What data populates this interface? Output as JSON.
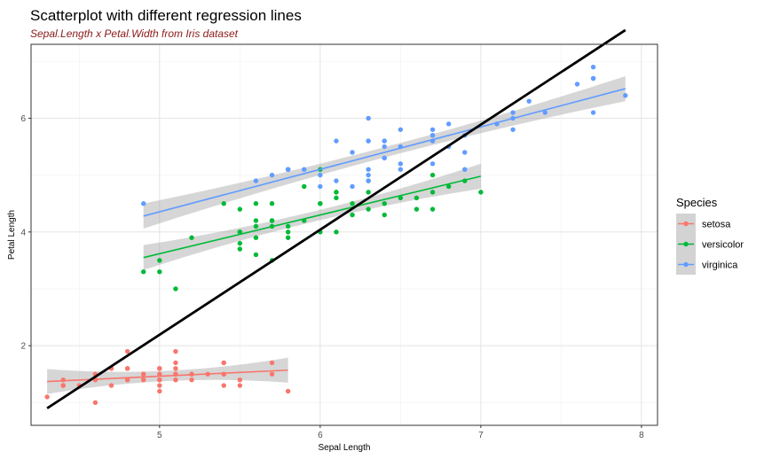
{
  "chart_data": {
    "type": "scatter",
    "title": "Scatterplot with different regression lines",
    "subtitle": "Sepal.Length x Petal.Width from Iris dataset",
    "xlabel": "Sepal Length",
    "ylabel": "Petal Length",
    "xlim": [
      4.2,
      8.1
    ],
    "ylim": [
      0.6,
      7.3
    ],
    "xticks": [
      5,
      6,
      7,
      8
    ],
    "yticks": [
      2,
      4,
      6
    ],
    "grid": true,
    "legend": {
      "title": "Species",
      "position": "right"
    },
    "series": [
      {
        "name": "setosa",
        "color": "#F8766D",
        "points": [
          [
            5.1,
            1.4
          ],
          [
            4.9,
            1.4
          ],
          [
            4.7,
            1.3
          ],
          [
            4.6,
            1.5
          ],
          [
            5.0,
            1.4
          ],
          [
            5.4,
            1.7
          ],
          [
            4.6,
            1.4
          ],
          [
            5.0,
            1.5
          ],
          [
            4.4,
            1.4
          ],
          [
            4.9,
            1.5
          ],
          [
            5.4,
            1.5
          ],
          [
            4.8,
            1.6
          ],
          [
            4.8,
            1.4
          ],
          [
            4.3,
            1.1
          ],
          [
            5.8,
            1.2
          ],
          [
            5.7,
            1.5
          ],
          [
            5.4,
            1.3
          ],
          [
            5.1,
            1.4
          ],
          [
            5.7,
            1.7
          ],
          [
            5.1,
            1.5
          ],
          [
            5.4,
            1.7
          ],
          [
            5.1,
            1.5
          ],
          [
            4.6,
            1.0
          ],
          [
            5.1,
            1.7
          ],
          [
            4.8,
            1.9
          ],
          [
            5.0,
            1.6
          ],
          [
            5.0,
            1.6
          ],
          [
            5.2,
            1.5
          ],
          [
            5.2,
            1.4
          ],
          [
            4.7,
            1.6
          ],
          [
            4.8,
            1.6
          ],
          [
            5.4,
            1.5
          ],
          [
            5.2,
            1.5
          ],
          [
            5.5,
            1.4
          ],
          [
            4.9,
            1.5
          ],
          [
            5.0,
            1.2
          ],
          [
            5.5,
            1.3
          ],
          [
            4.9,
            1.4
          ],
          [
            4.4,
            1.3
          ],
          [
            5.1,
            1.5
          ],
          [
            5.0,
            1.3
          ],
          [
            4.5,
            1.3
          ],
          [
            4.4,
            1.3
          ],
          [
            5.0,
            1.6
          ],
          [
            5.1,
            1.9
          ],
          [
            4.8,
            1.4
          ],
          [
            5.1,
            1.6
          ],
          [
            4.6,
            1.4
          ],
          [
            5.3,
            1.5
          ],
          [
            5.0,
            1.4
          ]
        ],
        "fit": {
          "x": [
            4.3,
            5.8
          ],
          "y": [
            1.37,
            1.57
          ]
        }
      },
      {
        "name": "versicolor",
        "color": "#00BA38",
        "points": [
          [
            7.0,
            4.7
          ],
          [
            6.4,
            4.5
          ],
          [
            6.9,
            4.9
          ],
          [
            5.5,
            4.0
          ],
          [
            6.5,
            4.6
          ],
          [
            5.7,
            4.5
          ],
          [
            6.3,
            4.7
          ],
          [
            4.9,
            3.3
          ],
          [
            6.6,
            4.6
          ],
          [
            5.2,
            3.9
          ],
          [
            5.0,
            3.5
          ],
          [
            5.9,
            4.2
          ],
          [
            6.0,
            4.0
          ],
          [
            6.1,
            4.7
          ],
          [
            5.6,
            3.6
          ],
          [
            6.7,
            4.4
          ],
          [
            5.6,
            4.5
          ],
          [
            5.8,
            4.1
          ],
          [
            6.2,
            4.5
          ],
          [
            5.6,
            3.9
          ],
          [
            5.9,
            4.8
          ],
          [
            6.1,
            4.0
          ],
          [
            6.3,
            4.9
          ],
          [
            6.1,
            4.7
          ],
          [
            6.4,
            4.3
          ],
          [
            6.6,
            4.4
          ],
          [
            6.8,
            4.8
          ],
          [
            6.7,
            5.0
          ],
          [
            6.0,
            4.5
          ],
          [
            5.7,
            3.5
          ],
          [
            5.5,
            3.8
          ],
          [
            5.5,
            3.7
          ],
          [
            5.8,
            3.9
          ],
          [
            6.0,
            5.1
          ],
          [
            5.4,
            4.5
          ],
          [
            6.0,
            4.5
          ],
          [
            6.7,
            4.7
          ],
          [
            6.3,
            4.4
          ],
          [
            5.6,
            4.1
          ],
          [
            5.5,
            4.0
          ],
          [
            5.5,
            4.4
          ],
          [
            6.1,
            4.6
          ],
          [
            5.8,
            4.0
          ],
          [
            5.0,
            3.3
          ],
          [
            5.6,
            4.2
          ],
          [
            5.7,
            4.2
          ],
          [
            5.7,
            4.2
          ],
          [
            6.2,
            4.3
          ],
          [
            5.1,
            3.0
          ],
          [
            5.7,
            4.1
          ]
        ],
        "fit": {
          "x": [
            4.9,
            7.0
          ],
          "y": [
            3.55,
            4.98
          ]
        }
      },
      {
        "name": "virginica",
        "color": "#619CFF",
        "points": [
          [
            6.3,
            6.0
          ],
          [
            5.8,
            5.1
          ],
          [
            7.1,
            5.9
          ],
          [
            6.3,
            5.6
          ],
          [
            6.5,
            5.8
          ],
          [
            7.6,
            6.6
          ],
          [
            4.9,
            4.5
          ],
          [
            7.3,
            6.3
          ],
          [
            6.7,
            5.8
          ],
          [
            7.2,
            6.1
          ],
          [
            6.5,
            5.1
          ],
          [
            6.4,
            5.3
          ],
          [
            6.8,
            5.5
          ],
          [
            5.7,
            5.0
          ],
          [
            5.8,
            5.1
          ],
          [
            6.4,
            5.3
          ],
          [
            6.5,
            5.5
          ],
          [
            7.7,
            6.7
          ],
          [
            7.7,
            6.9
          ],
          [
            6.0,
            5.0
          ],
          [
            6.9,
            5.7
          ],
          [
            5.6,
            4.9
          ],
          [
            7.7,
            6.7
          ],
          [
            6.3,
            4.9
          ],
          [
            6.7,
            5.7
          ],
          [
            7.2,
            6.0
          ],
          [
            6.2,
            4.8
          ],
          [
            6.1,
            4.9
          ],
          [
            6.4,
            5.6
          ],
          [
            7.2,
            5.8
          ],
          [
            7.4,
            6.1
          ],
          [
            7.9,
            6.4
          ],
          [
            6.4,
            5.6
          ],
          [
            6.3,
            5.1
          ],
          [
            6.1,
            5.6
          ],
          [
            7.7,
            6.1
          ],
          [
            6.3,
            5.6
          ],
          [
            6.4,
            5.5
          ],
          [
            6.0,
            4.8
          ],
          [
            6.9,
            5.4
          ],
          [
            6.7,
            5.6
          ],
          [
            6.9,
            5.1
          ],
          [
            5.8,
            5.1
          ],
          [
            6.8,
            5.9
          ],
          [
            6.7,
            5.7
          ],
          [
            6.7,
            5.2
          ],
          [
            6.3,
            5.0
          ],
          [
            6.5,
            5.2
          ],
          [
            6.2,
            5.4
          ],
          [
            5.9,
            5.1
          ]
        ],
        "fit": {
          "x": [
            4.9,
            7.9
          ],
          "y": [
            4.28,
            6.52
          ]
        }
      }
    ],
    "overall_fit": {
      "color": "#000000",
      "x": [
        4.3,
        7.9
      ],
      "y": [
        0.9,
        7.55
      ]
    }
  }
}
